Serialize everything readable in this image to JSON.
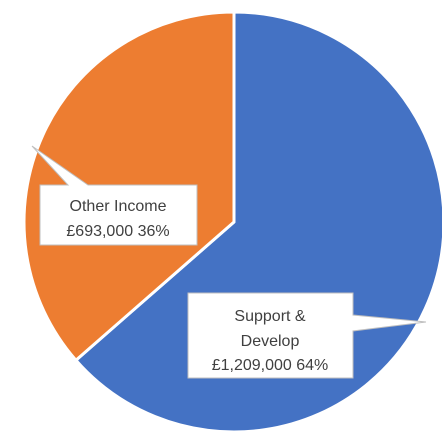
{
  "chart_data": {
    "type": "pie",
    "title": "",
    "categories": [
      "Support & Develop",
      "Other Income"
    ],
    "values": [
      1209000,
      693000
    ],
    "percentages": [
      64,
      36
    ],
    "value_labels": [
      "£1,209,000",
      "£693,000"
    ],
    "percent_labels": [
      "64%",
      "36%"
    ],
    "colors": [
      "#4472C4",
      "#ED7D31"
    ],
    "legend": "none",
    "start_angle_deg": 0,
    "direction": "clockwise"
  },
  "labels": {
    "support_line1": "Support &",
    "support_line2": "Develop",
    "support_line3": "£1,209,000 64%",
    "other_line1": "Other Income",
    "other_line2": "£693,000 36%"
  }
}
